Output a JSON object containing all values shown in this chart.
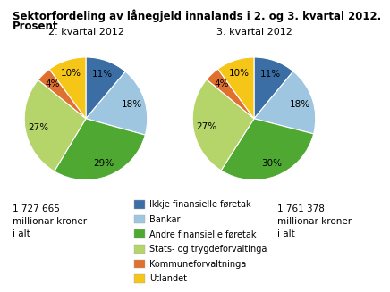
{
  "title_line1": "Sektorfordeling av lånegjeld innalands i 2. og 3. kvartal 2012.",
  "title_line2": "Prosent",
  "pie1_title": "2. kvartal 2012",
  "pie2_title": "3. kvartal 2012",
  "pie1_values": [
    11,
    18,
    29,
    27,
    4,
    10
  ],
  "pie2_values": [
    11,
    18,
    30,
    27,
    4,
    10
  ],
  "colors": [
    "#3A6EA5",
    "#9EC6E0",
    "#4EA832",
    "#B5D46A",
    "#E07030",
    "#F5C518"
  ],
  "labels": [
    "Ikkje finansielle føretak",
    "Bankar",
    "Andre finansielle føretak",
    "Stats- og trygdeforvaltinga",
    "Kommuneforvaltninga",
    "Utlandet"
  ],
  "pie1_note": "1 727 665\nmillionar kroner\ni alt",
  "pie2_note": "1 761 378\nmillionar kroner\ni alt",
  "bg_color": "#ffffff",
  "text_color": "#000000",
  "title_fontsize": 8.5,
  "subtitle_fontsize": 8.0,
  "legend_fontsize": 7.0,
  "pct_fontsize": 7.5,
  "note_fontsize": 7.5
}
